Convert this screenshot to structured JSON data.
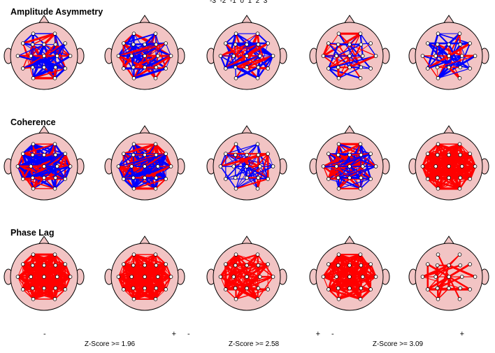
{
  "scale_ticks": [
    "-3",
    "-2",
    "-1",
    "0",
    "1",
    "2",
    "3"
  ],
  "sections": [
    {
      "title": "Amplitude Asymmetry",
      "density": [
        0.5,
        0.55,
        0.4,
        0.35,
        0.22
      ],
      "red_ratio": [
        0.35,
        0.4,
        0.4,
        0.55,
        0.4
      ],
      "blue_width": [
        2.4,
        2.4,
        2.4,
        1.6,
        2.2
      ]
    },
    {
      "title": "Coherence",
      "density": [
        0.75,
        0.8,
        0.4,
        0.6,
        0.9
      ],
      "red_ratio": [
        0.5,
        0.5,
        0.25,
        0.4,
        1.0
      ],
      "blue_width": [
        2.4,
        2.4,
        1.2,
        1.8,
        1.0
      ]
    },
    {
      "title": "Phase Lag",
      "density": [
        0.92,
        0.95,
        0.5,
        0.7,
        0.2
      ],
      "red_ratio": [
        1.0,
        1.0,
        1.0,
        1.0,
        1.0
      ],
      "blue_width": [
        1,
        1,
        1,
        1,
        1
      ]
    }
  ],
  "legends": [
    {
      "minus": "-",
      "plus": "+",
      "caption": "Z-Score >= 1.96",
      "stroke": 1
    },
    {
      "minus": "-",
      "plus": "+",
      "caption": "Z-Score >= 2.58",
      "stroke": 2.5
    },
    {
      "minus": "-",
      "plus": "+",
      "caption": "Z-Score >= 3.09",
      "stroke": 4
    }
  ],
  "colors": {
    "head_fill": "#f2c4c4",
    "outline": "#000000",
    "positive": "#ff0000",
    "negative": "#0000ff",
    "electrode": "#ffffff"
  }
}
